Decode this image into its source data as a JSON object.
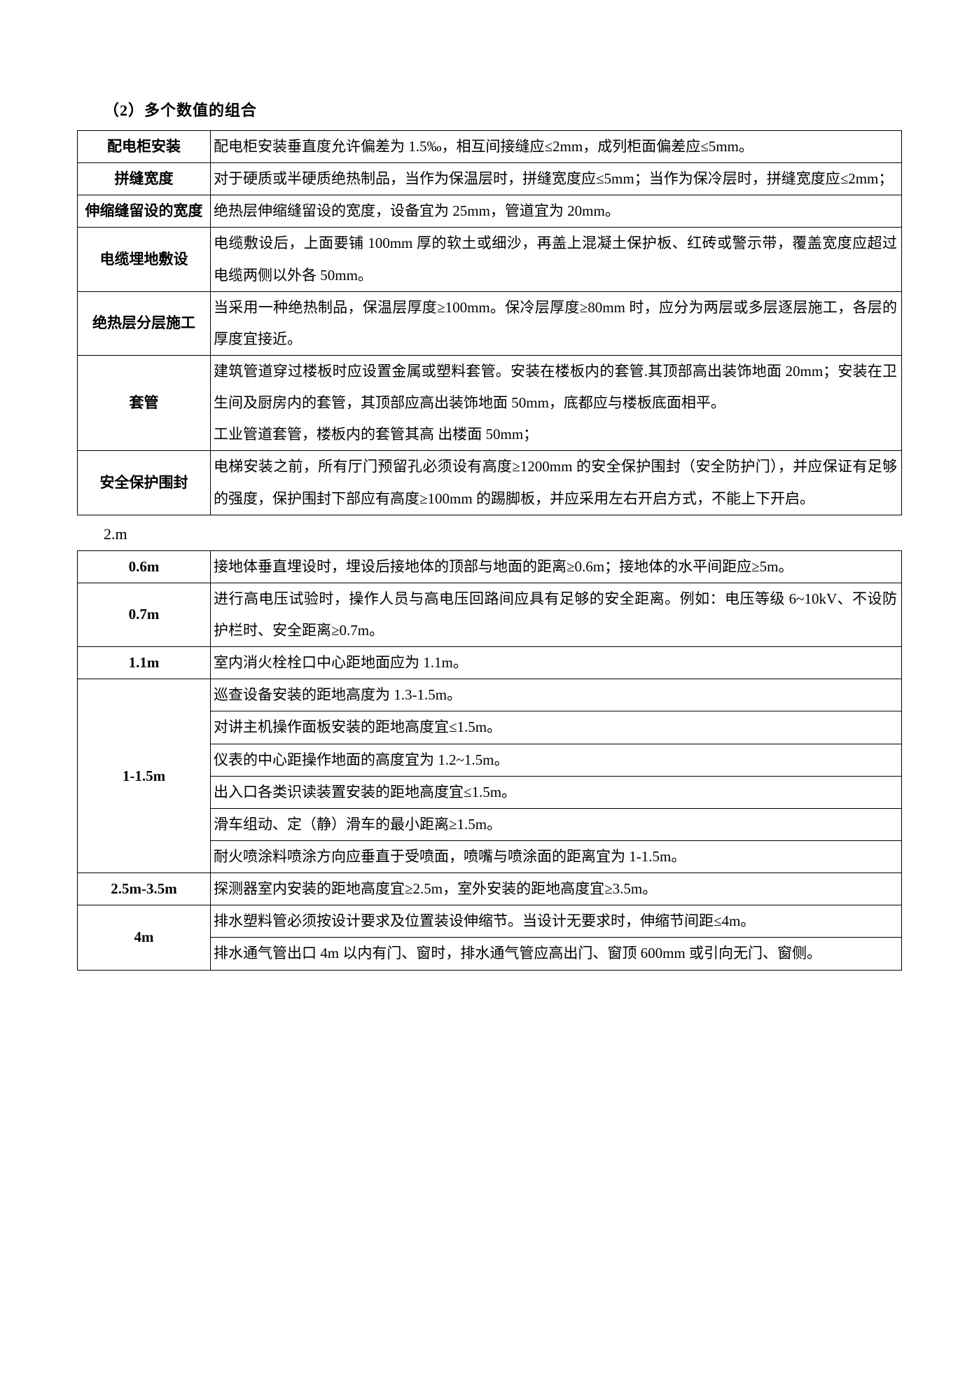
{
  "section1": {
    "title": "（2）多个数值的组合",
    "rows": [
      {
        "label": "配电柜安装",
        "desc": "配电柜安装垂直度允许偏差为 1.5‰，相互间接缝应≤2mm，成列柜面偏差应≤5mm。"
      },
      {
        "label": "拼缝宽度",
        "desc": "对于硬质或半硬质绝热制品，当作为保温层时，拼缝宽度应≤5mm；当作为保冷层时，拼缝宽度应≤2mm；"
      },
      {
        "label": "伸缩缝留设的宽度",
        "desc": "绝热层伸缩缝留设的宽度，设备宜为 25mm，管道宜为 20mm。"
      },
      {
        "label": "电缆埋地敷设",
        "desc": "电缆敷设后，上面要铺 100mm 厚的软土或细沙，再盖上混凝土保护板、红砖或警示带，覆盖宽度应超过电缆两侧以外各 50mm。"
      },
      {
        "label": "绝热层分层施工",
        "desc": "当采用一种绝热制品，保温层厚度≥100mm。保冷层厚度≥80mm 时，应分为两层或多层逐层施工，各层的厚度宜接近。"
      },
      {
        "label": "套管",
        "desc": "建筑管道穿过楼板时应设置金属或塑料套管。安装在楼板内的套管.其顶部高出装饰地面 20mm；安装在卫生间及厨房内的套管，其顶部应高出装饰地面 50mm，底都应与楼板底面相平。\n工业管道套管，楼板内的套管其高 出楼面 50mm；"
      },
      {
        "label": "安全保护围封",
        "desc": "电梯安装之前，所有厅门预留孔必须设有高度≥1200mm 的安全保护围封（安全防护门），并应保证有足够的强度，保护围封下部应有高度≥100mm 的踢脚板，并应采用左右开启方式，不能上下开启。"
      }
    ]
  },
  "section2": {
    "title": "2.m",
    "groups": [
      {
        "label": "0.6m",
        "lines": [
          "接地体垂直埋设时，埋设后接地体的顶部与地面的距离≥0.6m；接地体的水平间距应≥5m。"
        ]
      },
      {
        "label": "0.7m",
        "lines": [
          "进行高电压试验时，操作人员与高电压回路间应具有足够的安全距离。例如：电压等级 6~10kV、不设防护栏时、安全距离≥0.7m。"
        ]
      },
      {
        "label": "1.1m",
        "lines": [
          "室内消火栓栓口中心距地面应为 1.1m。"
        ]
      },
      {
        "label": "1-1.5m",
        "lines": [
          "巡查设备安装的距地高度为 1.3-1.5m。",
          "对讲主机操作面板安装的距地高度宜≤1.5m。",
          "仪表的中心距操作地面的高度宜为 1.2~1.5m。",
          "出入口各类识读装置安装的距地高度宜≤1.5m。",
          "滑车组动、定（静）滑车的最小距离≥1.5m。",
          "耐火喷涂料喷涂方向应垂直于受喷面，喷嘴与喷涂面的距离宜为 1-1.5m。"
        ]
      },
      {
        "label": "2.5m-3.5m",
        "lines": [
          "探测器室内安装的距地高度宜≥2.5m，室外安装的距地高度宜≥3.5m。"
        ]
      },
      {
        "label": "4m",
        "lines": [
          "排水塑料管必须按设计要求及位置装设伸缩节。当设计无要求时，伸缩节间距≤4m。",
          "排水通气管出口 4m 以内有门、窗时，排水通气管应高出门、窗顶 600mm 或引向无门、窗侧。"
        ]
      }
    ]
  }
}
